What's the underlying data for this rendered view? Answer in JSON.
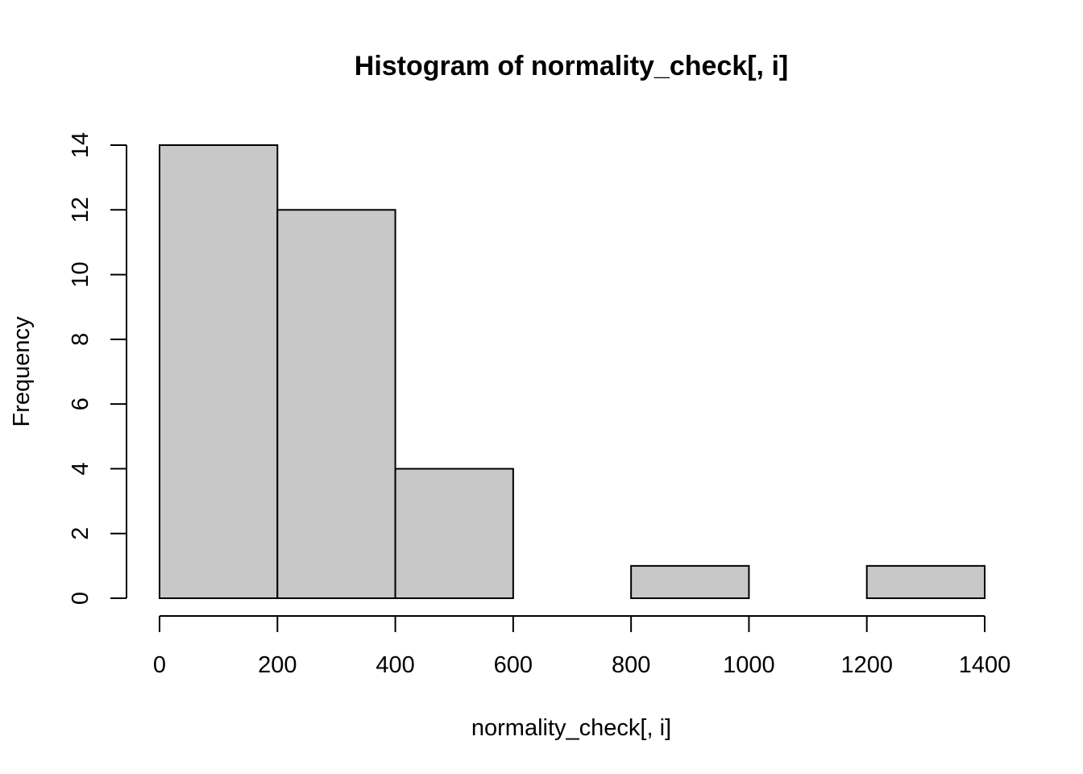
{
  "chart_data": {
    "type": "bar",
    "subtype": "histogram",
    "title": "Histogram of normality_check[, i]",
    "xlabel": "normality_check[, i]",
    "ylabel": "Frequency",
    "bins": [
      {
        "start": 0,
        "end": 200,
        "count": 14
      },
      {
        "start": 200,
        "end": 400,
        "count": 12
      },
      {
        "start": 400,
        "end": 600,
        "count": 4
      },
      {
        "start": 600,
        "end": 800,
        "count": 0
      },
      {
        "start": 800,
        "end": 1000,
        "count": 1
      },
      {
        "start": 1000,
        "end": 1200,
        "count": 0
      },
      {
        "start": 1200,
        "end": 1400,
        "count": 1
      }
    ],
    "xlim": [
      0,
      1400
    ],
    "ylim": [
      0,
      14
    ],
    "x_ticks": [
      0,
      200,
      400,
      600,
      800,
      1000,
      1200,
      1400
    ],
    "y_ticks": [
      0,
      2,
      4,
      6,
      8,
      10,
      12,
      14
    ],
    "bar_fill": "#c8c8c8",
    "bar_stroke": "#000000",
    "grid": false,
    "legend": "none"
  }
}
